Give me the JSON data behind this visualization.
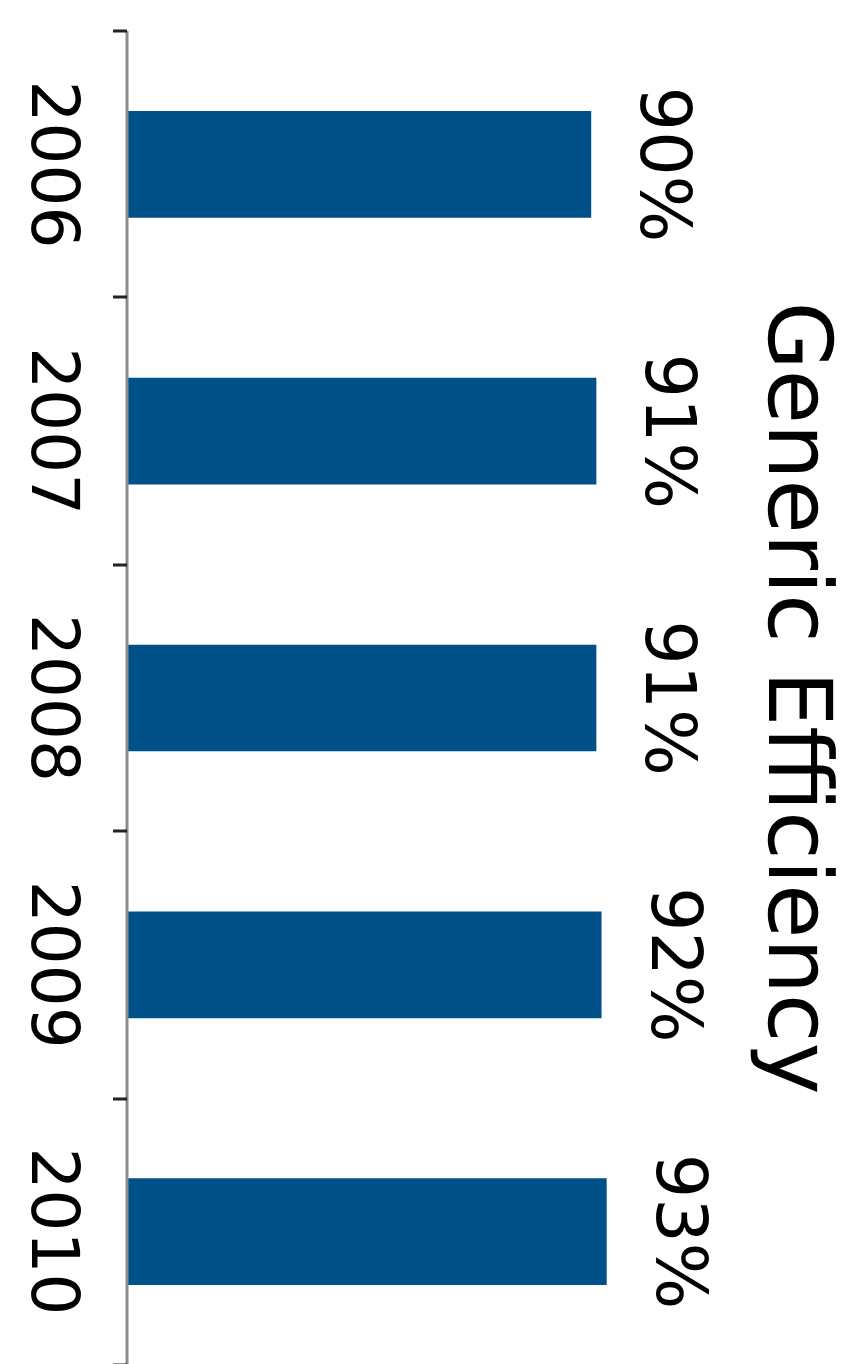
{
  "chart_data": {
    "type": "bar",
    "orientation": "horizontal",
    "title": "Generic Efficiency",
    "categories": [
      "2006",
      "2007",
      "2008",
      "2009",
      "2010"
    ],
    "values": [
      90,
      91,
      91,
      92,
      93
    ],
    "value_labels": [
      "90%",
      "91%",
      "91%",
      "92%",
      "93%"
    ],
    "color": "#00508a",
    "tick_labels": "y"
  }
}
